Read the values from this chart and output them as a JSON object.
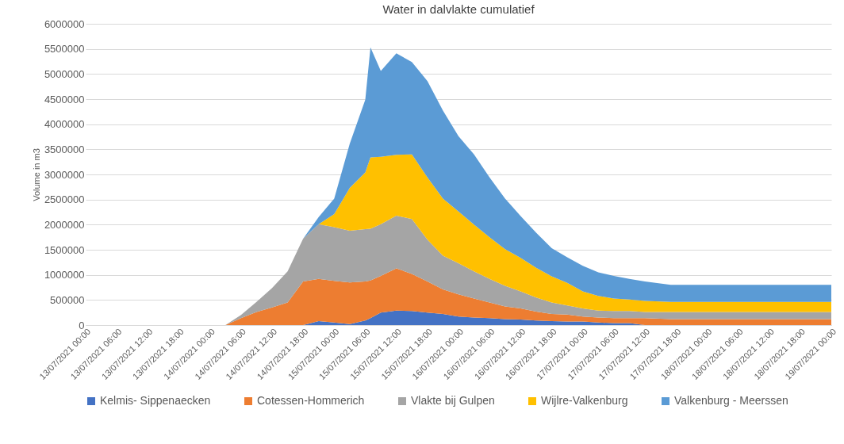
{
  "chart_data": {
    "type": "area",
    "stacked": true,
    "title": "Water in dalvlakte cumulatief",
    "ylabel": "Volume in m3",
    "x": [
      "2021-07-13T00:00",
      "2021-07-14T03:00",
      "2021-07-14T06:00",
      "2021-07-14T09:00",
      "2021-07-14T12:00",
      "2021-07-14T15:00",
      "2021-07-14T18:00",
      "2021-07-14T21:00",
      "2021-07-15T00:00",
      "2021-07-15T03:00",
      "2021-07-15T06:00",
      "2021-07-15T07:00",
      "2021-07-15T09:00",
      "2021-07-15T12:00",
      "2021-07-15T15:00",
      "2021-07-15T18:00",
      "2021-07-15T21:00",
      "2021-07-16T00:00",
      "2021-07-16T03:00",
      "2021-07-16T06:00",
      "2021-07-16T09:00",
      "2021-07-16T12:00",
      "2021-07-16T15:00",
      "2021-07-16T18:00",
      "2021-07-16T21:00",
      "2021-07-17T00:00",
      "2021-07-17T03:00",
      "2021-07-17T06:00",
      "2021-07-17T09:00",
      "2021-07-17T12:00",
      "2021-07-17T17:00",
      "2021-07-19T00:00"
    ],
    "series": [
      {
        "name": "Kelmis- Sippenaecken",
        "color": "#4472c4",
        "values": [
          0,
          0,
          0,
          0,
          0,
          0,
          0,
          80000,
          50000,
          20000,
          90000,
          140000,
          250000,
          290000,
          280000,
          250000,
          220000,
          170000,
          150000,
          140000,
          120000,
          110000,
          90000,
          80000,
          70000,
          70000,
          50000,
          40000,
          40000,
          0,
          0,
          0
        ]
      },
      {
        "name": "Cotessen-Hommerich",
        "color": "#ed7d31",
        "values": [
          0,
          0,
          140000,
          260000,
          350000,
          450000,
          870000,
          840000,
          830000,
          830000,
          780000,
          750000,
          730000,
          840000,
          740000,
          620000,
          490000,
          440000,
          380000,
          310000,
          250000,
          220000,
          180000,
          140000,
          140000,
          100000,
          100000,
          100000,
          100000,
          140000,
          120000,
          120000
        ]
      },
      {
        "name": "Vlakte bij Gulpen",
        "color": "#a5a5a5",
        "values": [
          0,
          0,
          60000,
          200000,
          390000,
          620000,
          850000,
          1090000,
          1070000,
          1030000,
          1040000,
          1030000,
          1030000,
          1050000,
          1090000,
          830000,
          670000,
          620000,
          540000,
          470000,
          410000,
          340000,
          280000,
          230000,
          180000,
          160000,
          140000,
          140000,
          140000,
          120000,
          140000,
          140000
        ]
      },
      {
        "name": "Wijlre-Valkenburg",
        "color": "#ffc000",
        "values": [
          0,
          0,
          0,
          0,
          0,
          0,
          0,
          0,
          260000,
          850000,
          1130000,
          1420000,
          1340000,
          1210000,
          1290000,
          1240000,
          1140000,
          1030000,
          930000,
          830000,
          730000,
          670000,
          590000,
          520000,
          450000,
          340000,
          290000,
          250000,
          230000,
          220000,
          200000,
          200000
        ]
      },
      {
        "name": "Valkenburg  - Meerssen",
        "color": "#5b9bd5",
        "values": [
          0,
          0,
          0,
          0,
          0,
          0,
          0,
          140000,
          310000,
          880000,
          1450000,
          2190000,
          1710000,
          2020000,
          1840000,
          1920000,
          1750000,
          1500000,
          1400000,
          1190000,
          1010000,
          830000,
          700000,
          560000,
          510000,
          510000,
          470000,
          450000,
          410000,
          390000,
          340000,
          340000
        ]
      }
    ],
    "xlim": [
      "2021-07-13T00:00",
      "2021-07-19T00:00"
    ],
    "xticks": [
      {
        "value": "2021-07-13T00:00",
        "label": "13/07/2021 00:00"
      },
      {
        "value": "2021-07-13T06:00",
        "label": "13/07/2021 06:00"
      },
      {
        "value": "2021-07-13T12:00",
        "label": "13/07/2021 12:00"
      },
      {
        "value": "2021-07-13T18:00",
        "label": "13/07/2021 18:00"
      },
      {
        "value": "2021-07-14T00:00",
        "label": "14/07/2021 00:00"
      },
      {
        "value": "2021-07-14T06:00",
        "label": "14/07/2021 06:00"
      },
      {
        "value": "2021-07-14T12:00",
        "label": "14/07/2021 12:00"
      },
      {
        "value": "2021-07-14T18:00",
        "label": "14/07/2021 18:00"
      },
      {
        "value": "2021-07-15T00:00",
        "label": "15/07/2021 00:00"
      },
      {
        "value": "2021-07-15T06:00",
        "label": "15/07/2021 06:00"
      },
      {
        "value": "2021-07-15T12:00",
        "label": "15/07/2021 12:00"
      },
      {
        "value": "2021-07-15T18:00",
        "label": "15/07/2021 18:00"
      },
      {
        "value": "2021-07-16T00:00",
        "label": "16/07/2021 00:00"
      },
      {
        "value": "2021-07-16T06:00",
        "label": "16/07/2021 06:00"
      },
      {
        "value": "2021-07-16T12:00",
        "label": "16/07/2021 12:00"
      },
      {
        "value": "2021-07-16T18:00",
        "label": "16/07/2021 18:00"
      },
      {
        "value": "2021-07-17T00:00",
        "label": "17/07/2021 00:00"
      },
      {
        "value": "2021-07-17T06:00",
        "label": "17/07/2021 06:00"
      },
      {
        "value": "2021-07-17T12:00",
        "label": "17/07/2021 12:00"
      },
      {
        "value": "2021-07-17T18:00",
        "label": "17/07/2021 18:00"
      },
      {
        "value": "2021-07-18T00:00",
        "label": "18/07/2021 00:00"
      },
      {
        "value": "2021-07-18T06:00",
        "label": "18/07/2021 06:00"
      },
      {
        "value": "2021-07-18T12:00",
        "label": "18/07/2021 12:00"
      },
      {
        "value": "2021-07-18T18:00",
        "label": "18/07/2021 18:00"
      },
      {
        "value": "2021-07-19T00:00",
        "label": "19/07/2021 00:00"
      }
    ],
    "ylim": [
      0,
      6000000
    ],
    "yticks": [
      0,
      500000,
      1000000,
      1500000,
      2000000,
      2500000,
      3000000,
      3500000,
      4000000,
      4500000,
      5000000,
      5500000,
      6000000
    ],
    "grid": "y",
    "legend": "bottom"
  }
}
